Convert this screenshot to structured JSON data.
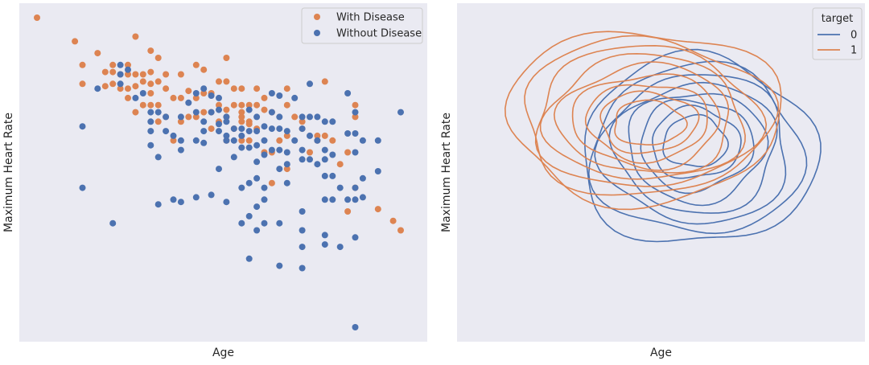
{
  "chart_data": [
    {
      "type": "scatter",
      "xlabel": "Age",
      "ylabel": "Maximum Heart Rate",
      "grid": false,
      "legend_position": "top-right",
      "series": [
        {
          "name": "With Disease",
          "color": "#dd8452",
          "points": [
            [
              29,
              202
            ],
            [
              34,
              192
            ],
            [
              35,
              182
            ],
            [
              35,
              174
            ],
            [
              37,
              187
            ],
            [
              38,
              179
            ],
            [
              38,
              173
            ],
            [
              39,
              182
            ],
            [
              39,
              179
            ],
            [
              39,
              174
            ],
            [
              40,
              178
            ],
            [
              40,
              172
            ],
            [
              41,
              182
            ],
            [
              41,
              178
            ],
            [
              41,
              172
            ],
            [
              41,
              168
            ],
            [
              42,
              194
            ],
            [
              42,
              178
            ],
            [
              42,
              173
            ],
            [
              42,
              162
            ],
            [
              43,
              178
            ],
            [
              43,
              175
            ],
            [
              43,
              165
            ],
            [
              44,
              188
            ],
            [
              44,
              179
            ],
            [
              44,
              174
            ],
            [
              44,
              170
            ],
            [
              44,
              165
            ],
            [
              45,
              185
            ],
            [
              45,
              175
            ],
            [
              45,
              165
            ],
            [
              45,
              158
            ],
            [
              46,
              178
            ],
            [
              46,
              172
            ],
            [
              46,
              160
            ],
            [
              47,
              168
            ],
            [
              47,
              150
            ],
            [
              48,
              178
            ],
            [
              48,
              168
            ],
            [
              48,
              158
            ],
            [
              49,
              171
            ],
            [
              49,
              160
            ],
            [
              50,
              182
            ],
            [
              50,
              168
            ],
            [
              50,
              160
            ],
            [
              51,
              180
            ],
            [
              51,
              170
            ],
            [
              51,
              162
            ],
            [
              52,
              170
            ],
            [
              52,
              162
            ],
            [
              52,
              155
            ],
            [
              53,
              175
            ],
            [
              53,
              165
            ],
            [
              53,
              158
            ],
            [
              54,
              185
            ],
            [
              54,
              175
            ],
            [
              54,
              163
            ],
            [
              54,
              160
            ],
            [
              54,
              150
            ],
            [
              55,
              172
            ],
            [
              55,
              165
            ],
            [
              55,
              155
            ],
            [
              56,
              172
            ],
            [
              56,
              165
            ],
            [
              56,
              162
            ],
            [
              56,
              160
            ],
            [
              56,
              158
            ],
            [
              56,
              150
            ],
            [
              57,
              165
            ],
            [
              57,
              158
            ],
            [
              57,
              157
            ],
            [
              57,
              150
            ],
            [
              58,
              172
            ],
            [
              58,
              165
            ],
            [
              58,
              155
            ],
            [
              59,
              168
            ],
            [
              59,
              163
            ],
            [
              59,
              145
            ],
            [
              60,
              162
            ],
            [
              60,
              145
            ],
            [
              60,
              132
            ],
            [
              61,
              150
            ],
            [
              62,
              172
            ],
            [
              62,
              165
            ],
            [
              62,
              152
            ],
            [
              62,
              138
            ],
            [
              63,
              160
            ],
            [
              64,
              158
            ],
            [
              64,
              155
            ],
            [
              65,
              145
            ],
            [
              66,
              150
            ],
            [
              66,
              152
            ],
            [
              67,
              175
            ],
            [
              67,
              152
            ],
            [
              68,
              150
            ],
            [
              69,
              140
            ],
            [
              70,
              145
            ],
            [
              70,
              120
            ],
            [
              71,
              165
            ],
            [
              71,
              160
            ],
            [
              71,
              130
            ],
            [
              74,
              121
            ],
            [
              76,
              116
            ],
            [
              77,
              112
            ]
          ]
        },
        {
          "name": "Without Disease",
          "color": "#4c72b0",
          "points": [
            [
              35,
              156
            ],
            [
              35,
              130
            ],
            [
              37,
              172
            ],
            [
              39,
              115
            ],
            [
              40,
              182
            ],
            [
              40,
              174
            ],
            [
              40,
              178
            ],
            [
              41,
              180
            ],
            [
              42,
              168
            ],
            [
              43,
              170
            ],
            [
              44,
              162
            ],
            [
              44,
              158
            ],
            [
              44,
              154
            ],
            [
              44,
              148
            ],
            [
              45,
              162
            ],
            [
              45,
              123
            ],
            [
              45,
              143
            ],
            [
              46,
              160
            ],
            [
              46,
              154
            ],
            [
              47,
              152
            ],
            [
              47,
              125
            ],
            [
              48,
              160
            ],
            [
              48,
              150
            ],
            [
              48,
              146
            ],
            [
              48,
              124
            ],
            [
              49,
              166
            ],
            [
              50,
              170
            ],
            [
              50,
              150
            ],
            [
              50,
              162
            ],
            [
              50,
              126
            ],
            [
              51,
              172
            ],
            [
              51,
              158
            ],
            [
              51,
              154
            ],
            [
              51,
              149
            ],
            [
              52,
              169
            ],
            [
              52,
              162
            ],
            [
              52,
              127
            ],
            [
              53,
              168
            ],
            [
              53,
              163
            ],
            [
              53,
              157
            ],
            [
              53,
              154
            ],
            [
              53,
              138
            ],
            [
              54,
              160
            ],
            [
              54,
              158
            ],
            [
              54,
              152
            ],
            [
              54,
              150
            ],
            [
              54,
              124
            ],
            [
              55,
              155
            ],
            [
              55,
              150
            ],
            [
              55,
              143
            ],
            [
              56,
              155
            ],
            [
              56,
              152
            ],
            [
              56,
              147
            ],
            [
              56,
              130
            ],
            [
              56,
              115
            ],
            [
              57,
              163
            ],
            [
              57,
              154
            ],
            [
              57,
              147
            ],
            [
              57,
              132
            ],
            [
              57,
              118
            ],
            [
              57,
              100
            ],
            [
              58,
              160
            ],
            [
              58,
              154
            ],
            [
              58,
              148
            ],
            [
              58,
              141
            ],
            [
              58,
              134
            ],
            [
              58,
              122
            ],
            [
              58,
              112
            ],
            [
              59,
              156
            ],
            [
              59,
              150
            ],
            [
              59,
              144
            ],
            [
              59,
              130
            ],
            [
              59,
              125
            ],
            [
              59,
              115
            ],
            [
              60,
              170
            ],
            [
              60,
              162
            ],
            [
              60,
              155
            ],
            [
              60,
              146
            ],
            [
              61,
              169
            ],
            [
              61,
              160
            ],
            [
              61,
              155
            ],
            [
              61,
              146
            ],
            [
              61,
              138
            ],
            [
              61,
              115
            ],
            [
              61,
              97
            ],
            [
              62,
              154
            ],
            [
              62,
              145
            ],
            [
              62,
              140
            ],
            [
              62,
              132
            ],
            [
              63,
              168
            ],
            [
              63,
              150
            ],
            [
              64,
              160
            ],
            [
              64,
              155
            ],
            [
              64,
              146
            ],
            [
              64,
              142
            ],
            [
              64,
              120
            ],
            [
              64,
              112
            ],
            [
              64,
              105
            ],
            [
              64,
              96
            ],
            [
              65,
              174
            ],
            [
              65,
              160
            ],
            [
              65,
              152
            ],
            [
              65,
              142
            ],
            [
              66,
              160
            ],
            [
              66,
              150
            ],
            [
              66,
              140
            ],
            [
              67,
              158
            ],
            [
              67,
              146
            ],
            [
              67,
              142
            ],
            [
              67,
              135
            ],
            [
              67,
              125
            ],
            [
              67,
              110
            ],
            [
              67,
              106
            ],
            [
              68,
              158
            ],
            [
              68,
              144
            ],
            [
              68,
              135
            ],
            [
              68,
              125
            ],
            [
              69,
              130
            ],
            [
              69,
              105
            ],
            [
              70,
              170
            ],
            [
              70,
              153
            ],
            [
              70,
              125
            ],
            [
              71,
              162
            ],
            [
              71,
              153
            ],
            [
              71,
              145
            ],
            [
              71,
              130
            ],
            [
              71,
              125
            ],
            [
              71,
              109
            ],
            [
              71,
              71
            ],
            [
              72,
              150
            ],
            [
              72,
              134
            ],
            [
              72,
              126
            ],
            [
              74,
              150
            ],
            [
              74,
              137
            ],
            [
              77,
              162
            ]
          ]
        }
      ]
    },
    {
      "type": "kde_contour",
      "xlabel": "Age",
      "ylabel": "Maximum Heart Rate",
      "grid": false,
      "legend_title": "target",
      "legend_position": "top-right",
      "series": [
        {
          "name": "0",
          "color": "#4c72b0",
          "center": [
            58,
            150
          ],
          "spread": [
            7.4,
            19.0
          ],
          "levels": 8
        },
        {
          "name": "1",
          "color": "#dd8452",
          "center": [
            52,
            157
          ],
          "spread": [
            8.6,
            17.4
          ],
          "levels": 9
        }
      ]
    }
  ]
}
